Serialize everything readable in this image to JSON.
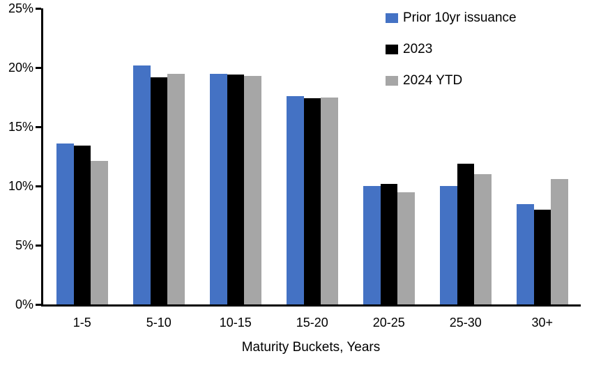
{
  "chart_data": {
    "type": "bar",
    "title": "",
    "categories": [
      "1-5",
      "5-10",
      "10-15",
      "15-20",
      "20-25",
      "25-30",
      "30+"
    ],
    "series": [
      {
        "name": "Prior 10yr issuance",
        "color": "#4472C4",
        "values": [
          13.6,
          20.2,
          19.5,
          17.6,
          10.0,
          10.0,
          8.5
        ]
      },
      {
        "name": "2023",
        "color": "#000000",
        "values": [
          13.4,
          19.2,
          19.4,
          17.4,
          10.2,
          11.9,
          8.0
        ]
      },
      {
        "name": "2024 YTD",
        "color": "#A6A6A6",
        "values": [
          12.1,
          19.5,
          19.3,
          17.5,
          9.5,
          11.0,
          10.6
        ]
      }
    ],
    "xlabel": "Maturity Buckets, Years",
    "ylabel": "",
    "ylim": [
      0,
      25
    ],
    "yticks": [
      0,
      5,
      10,
      15,
      20,
      25
    ],
    "ytick_suffix": "%",
    "grid": false,
    "legend_position": "top-right",
    "axis_color": "#000000",
    "background_color": "#FFFFFF"
  }
}
